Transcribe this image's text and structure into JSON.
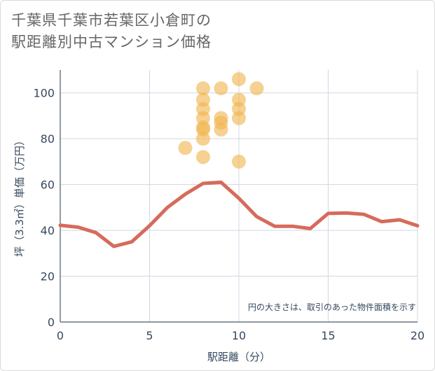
{
  "title_lines": [
    "千葉県千葉市若葉区小倉町の",
    "駅距離別中古マンション価格"
  ],
  "chart_data": {
    "type": "scatter",
    "title": "千葉県千葉市若葉区小倉町の駅距離別中古マンション価格",
    "xlabel": "駅距離（分）",
    "ylabel": "坪（3.3㎡）単価（万円）",
    "xlim": [
      0,
      20
    ],
    "ylim": [
      0,
      110
    ],
    "xticks": [
      0,
      5,
      10,
      15,
      20
    ],
    "yticks": [
      0,
      20,
      40,
      60,
      80,
      100
    ],
    "grid": true,
    "annotation": "円の大きさは、取引のあった物件面積を示す",
    "colors": {
      "bubble": "#f0b54f",
      "line": "#d66b5c",
      "grid": "#d0d8e0"
    },
    "scatter": [
      {
        "x": 7,
        "y": 76
      },
      {
        "x": 8,
        "y": 102
      },
      {
        "x": 8,
        "y": 97
      },
      {
        "x": 8,
        "y": 93
      },
      {
        "x": 8,
        "y": 89
      },
      {
        "x": 8,
        "y": 85
      },
      {
        "x": 8,
        "y": 84
      },
      {
        "x": 8,
        "y": 80
      },
      {
        "x": 8,
        "y": 72
      },
      {
        "x": 9,
        "y": 102
      },
      {
        "x": 9,
        "y": 89
      },
      {
        "x": 9,
        "y": 87
      },
      {
        "x": 9,
        "y": 84
      },
      {
        "x": 10,
        "y": 106
      },
      {
        "x": 10,
        "y": 97
      },
      {
        "x": 10,
        "y": 93
      },
      {
        "x": 10,
        "y": 89
      },
      {
        "x": 10,
        "y": 70
      },
      {
        "x": 11,
        "y": 102
      }
    ],
    "line": {
      "x": [
        0,
        1,
        2,
        3,
        4,
        5,
        6,
        7,
        8,
        9,
        10,
        11,
        12,
        13,
        14,
        15,
        16,
        17,
        18,
        19,
        20
      ],
      "y": [
        42.2,
        41.4,
        39.0,
        33.0,
        35.0,
        42.0,
        50.0,
        55.8,
        60.5,
        61.0,
        54.0,
        46.0,
        41.8,
        41.8,
        40.8,
        47.4,
        47.6,
        47.0,
        43.8,
        44.6,
        42.0
      ]
    }
  }
}
